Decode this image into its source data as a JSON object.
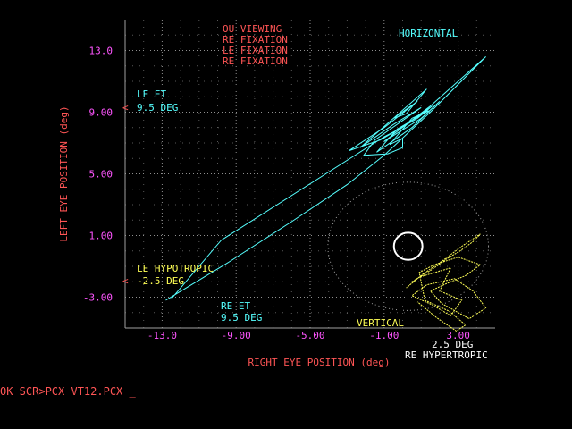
{
  "colors": {
    "grid": "#a0a0a0",
    "axis_text": "#ff5555",
    "tick_labels": "#ff55ff",
    "horizontal_trace": "#55ffff",
    "vertical_trace": "#ffff55",
    "annotation_cyan": "#55ffff",
    "annotation_yellow": "#ffff55",
    "marker_white": "#ffffff"
  },
  "chart_data": {
    "type": "scatter",
    "title": "",
    "xlabel": "RIGHT EYE POSITION (deg)",
    "ylabel": "LEFT EYE POSITION (deg)",
    "xlim": [
      -15,
      5
    ],
    "ylim": [
      -5,
      15
    ],
    "grid": true,
    "x_ticks": [
      -13,
      -9,
      -5,
      -1,
      3
    ],
    "x_tick_labels": [
      "-13.0",
      "-9.00",
      "-5.00",
      "-1.00",
      "3.00"
    ],
    "y_ticks": [
      13,
      9,
      5,
      1,
      -3
    ],
    "y_tick_labels": [
      "13.0",
      "9.00",
      "5.00",
      "1.00",
      "-3.00"
    ],
    "legend_lines": [
      "OU VIEWING",
      "RE FIXATION",
      "LE FIXATION",
      "RE FIXATION"
    ],
    "series": [
      {
        "name": "HORIZONTAL",
        "points": [
          [
            -12.8,
            -3.2
          ],
          [
            -9.5,
            -0.8
          ],
          [
            -6,
            1.9
          ],
          [
            -3,
            4.3
          ],
          [
            -1,
            6.2
          ],
          [
            1.5,
            9
          ],
          [
            4.5,
            12.6
          ],
          [
            1.5,
            9.4
          ],
          [
            -1,
            7.1
          ],
          [
            -0.6,
            7.4
          ],
          [
            1,
            8.6
          ],
          [
            2,
            9.7
          ],
          [
            0.5,
            8
          ],
          [
            -1.4,
            6.4
          ],
          [
            -0.3,
            7.9
          ],
          [
            1.4,
            9.1
          ],
          [
            0.5,
            8.6
          ],
          [
            -0.7,
            6.9
          ],
          [
            0,
            7.3
          ],
          [
            0,
            6.7
          ],
          [
            -0.8,
            6.3
          ],
          [
            -2.1,
            6.2
          ],
          [
            -1.5,
            7.2
          ],
          [
            1,
            9.3
          ],
          [
            -0.5,
            8.2
          ],
          [
            -2.3,
            6.7
          ],
          [
            1.3,
            10.5
          ],
          [
            0.2,
            8.9
          ],
          [
            -0.5,
            8.6
          ],
          [
            0.8,
            9.7
          ],
          [
            -1,
            8
          ],
          [
            -2.9,
            6.5
          ],
          [
            -1.2,
            7.2
          ],
          [
            0.8,
            8.6
          ],
          [
            1.6,
            9.4
          ],
          [
            -0.2,
            7.9
          ],
          [
            -1,
            7.4
          ],
          [
            -9.8,
            0.7
          ],
          [
            -12.5,
            -3.1
          ]
        ]
      },
      {
        "name": "VERTICAL",
        "points": [
          [
            0.5,
            -2
          ],
          [
            1.6,
            -1.2
          ],
          [
            2.4,
            -0.5
          ],
          [
            3.1,
            0
          ],
          [
            3.8,
            0.6
          ],
          [
            4.2,
            1.1
          ],
          [
            3.2,
            0.3
          ],
          [
            2.2,
            -0.6
          ],
          [
            1.1,
            -1.5
          ],
          [
            0.2,
            -2.4
          ],
          [
            0.9,
            -1.7
          ],
          [
            2.6,
            -1.1
          ],
          [
            2,
            -2.6
          ],
          [
            3.2,
            -3.2
          ],
          [
            2.6,
            -4.2
          ],
          [
            1.6,
            -3.5
          ],
          [
            0.5,
            -2.9
          ],
          [
            1.3,
            -2.2
          ],
          [
            2.8,
            -1.8
          ],
          [
            3.8,
            -2.6
          ],
          [
            4.5,
            -3.7
          ],
          [
            3.6,
            -4.4
          ],
          [
            2.1,
            -3.4
          ],
          [
            1.5,
            -2.6
          ],
          [
            2.4,
            -2.1
          ],
          [
            3.4,
            -1.6
          ],
          [
            4.2,
            -0.9
          ],
          [
            3,
            -0.4
          ],
          [
            1.7,
            -0.9
          ],
          [
            0.9,
            -1.4
          ],
          [
            1.2,
            -3.2
          ],
          [
            2.5,
            -3.9
          ],
          [
            3.4,
            -4.8
          ],
          [
            2.9,
            -5.2
          ],
          [
            1.8,
            -4.3
          ],
          [
            0.8,
            -3.3
          ]
        ]
      }
    ],
    "target_marker": {
      "x": 0.3,
      "y": 0.3,
      "rx": 1.4,
      "ry": 1.6
    },
    "series_labels": {
      "horizontal": "HORIZONTAL",
      "vertical": "VERTICAL"
    },
    "annotations": {
      "le_et": "LE ET",
      "le_et_value": "9.5 DEG",
      "le_hypotropic": "LE HYPOTROPIC",
      "le_hypotropic_value": "-2.5 DEG",
      "re_et": "RE ET",
      "re_et_value": "9.5 DEG",
      "re_hyper_value": "2.5 DEG",
      "re_hypertropic": "RE HYPERTROPIC",
      "arrow_glyph": "<"
    }
  },
  "prompt": {
    "text": "OK SCR>PCX VT12.PCX _"
  }
}
